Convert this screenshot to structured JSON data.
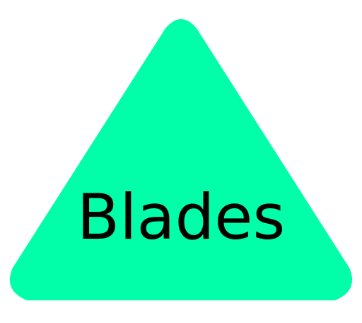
{
  "shape": {
    "kind": "warning-triangle",
    "fill": "#00FFA8",
    "label": "Blades",
    "label_color": "#000000"
  }
}
